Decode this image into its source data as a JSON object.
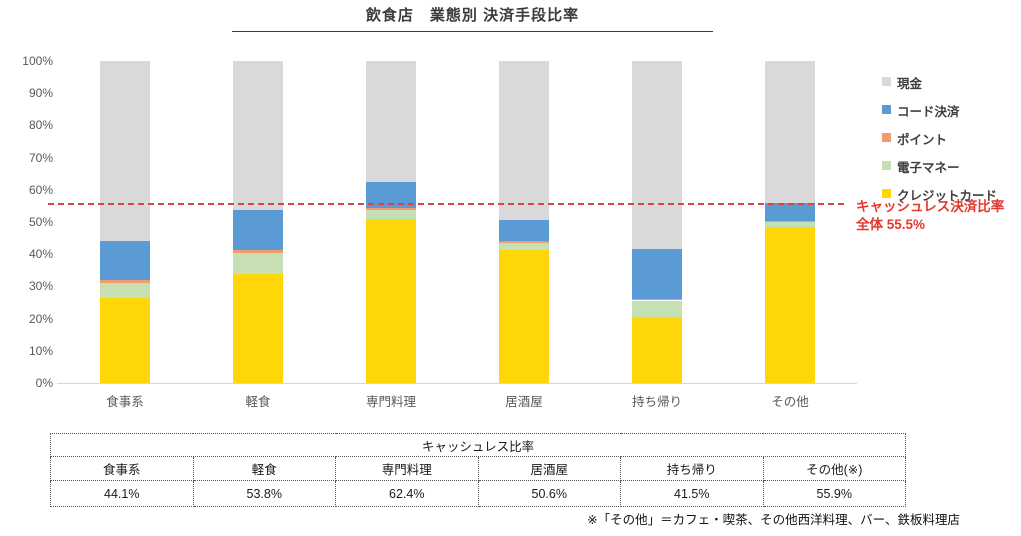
{
  "title": "飲食店　業態別 決済手段比率",
  "chart_data": {
    "type": "bar",
    "stacked": true,
    "title": "飲食店　業態別 決済手段比率",
    "categories": [
      "食事系",
      "軽食",
      "専門料理",
      "居酒屋",
      "持ち帰り",
      "その他"
    ],
    "series": [
      {
        "key": "credit-card",
        "name": "クレジットカード",
        "color": "#ffd608",
        "values": [
          26.3,
          33.8,
          51.0,
          41.2,
          20.6,
          48.4
        ]
      },
      {
        "key": "e-money",
        "name": "電子マネー",
        "color": "#c6e0b4",
        "values": [
          4.7,
          6.6,
          2.8,
          2.2,
          5.0,
          1.6
        ]
      },
      {
        "key": "points",
        "name": "ポイント",
        "color": "#f09c6e",
        "values": [
          0.9,
          0.9,
          0.6,
          0.6,
          0.6,
          0.3
        ]
      },
      {
        "key": "code-payment",
        "name": "コード決済",
        "color": "#5b9bd5",
        "values": [
          12.2,
          12.5,
          8.0,
          6.6,
          15.3,
          5.6
        ]
      },
      {
        "key": "cash",
        "name": "現金",
        "color": "#d9d9d9",
        "values": [
          55.9,
          46.2,
          37.6,
          49.4,
          58.5,
          44.1
        ]
      }
    ],
    "ytick_labels": [
      "0%",
      "10%",
      "20%",
      "30%",
      "40%",
      "50%",
      "60%",
      "70%",
      "80%",
      "90%",
      "100%"
    ],
    "ylim": [
      0,
      100
    ],
    "legend_position": "right",
    "grid": false,
    "reference_line": {
      "value": 55.5,
      "color": "#dc4540",
      "style": "dashed"
    }
  },
  "annotation": {
    "line1": "キャッシュレス決済比率",
    "line2": "全体 55.5%"
  },
  "table": {
    "title": "キャッシュレス比率",
    "columns": [
      "食事系",
      "軽食",
      "専門料理",
      "居酒屋",
      "持ち帰り",
      "その他(※)"
    ],
    "values": [
      "44.1%",
      "53.8%",
      "62.4%",
      "50.6%",
      "41.5%",
      "55.9%"
    ]
  },
  "footnote": "※「その他」＝カフェ・喫茶、その他西洋料理、バー、鉄板料理店",
  "colors": {
    "cash": "#d9d9d9",
    "code_payment": "#5b9bd5",
    "points": "#f09c6e",
    "e_money": "#c6e0b4",
    "credit_card": "#ffd608",
    "reference": "#dc4540",
    "annotation_text": "#e23830"
  }
}
